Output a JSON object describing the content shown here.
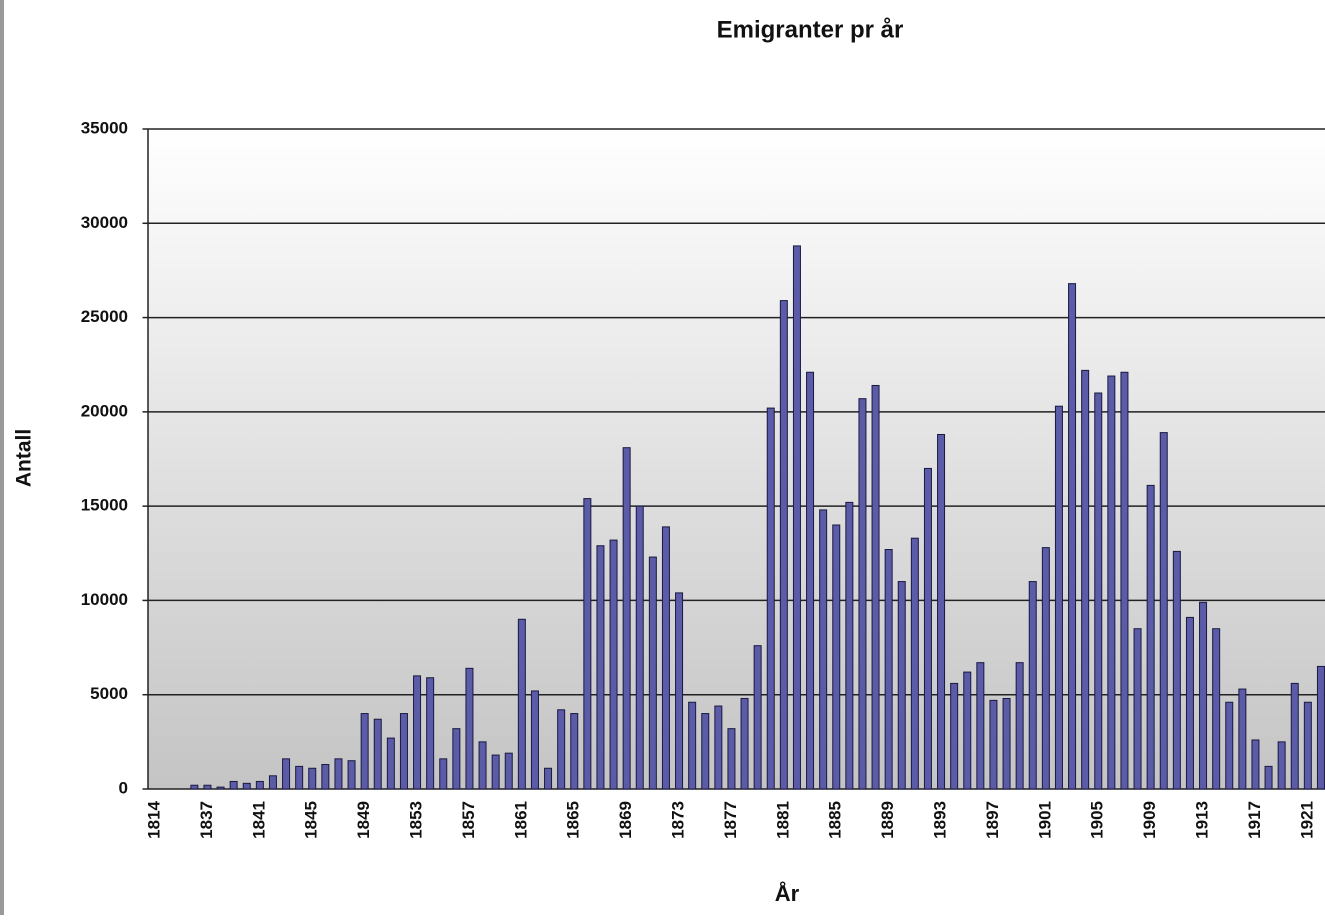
{
  "chart_data": {
    "type": "bar",
    "title": "Emigranter pr år",
    "x_label": "År",
    "y_label": "Antall",
    "categories": [
      "1814",
      null,
      null,
      null,
      "1837",
      null,
      null,
      null,
      "1841",
      null,
      null,
      null,
      "1845",
      null,
      null,
      null,
      "1849",
      null,
      null,
      null,
      "1853",
      null,
      null,
      null,
      "1857",
      null,
      null,
      null,
      "1861",
      null,
      null,
      null,
      "1865",
      null,
      null,
      null,
      "1869",
      null,
      null,
      null,
      "1873",
      null,
      null,
      null,
      "1877",
      null,
      null,
      null,
      "1881",
      null,
      null,
      null,
      "1885",
      null,
      null,
      null,
      "1889",
      null,
      null,
      null,
      "1893",
      null,
      null,
      null,
      "1897",
      null,
      null,
      null,
      "1901",
      null,
      null,
      null,
      "1905",
      null,
      null,
      null,
      "1909",
      null,
      null,
      null,
      "1913",
      null,
      null,
      null,
      "1917",
      null,
      null,
      null,
      "1921",
      null
    ],
    "values": [
      0,
      0,
      0,
      200,
      200,
      100,
      400,
      300,
      400,
      700,
      1600,
      1200,
      1100,
      1300,
      1600,
      1500,
      4000,
      3700,
      2700,
      4000,
      6000,
      5900,
      1600,
      3200,
      6400,
      2500,
      1800,
      1900,
      9000,
      5200,
      1100,
      4200,
      4000,
      15400,
      12900,
      13200,
      18100,
      15000,
      12300,
      13900,
      10400,
      4600,
      4000,
      4400,
      3200,
      4800,
      7600,
      20200,
      25900,
      28800,
      22100,
      14800,
      14000,
      15200,
      20700,
      21400,
      12700,
      11000,
      13300,
      17000,
      18800,
      5600,
      6200,
      6700,
      4700,
      4800,
      6700,
      11000,
      12800,
      20300,
      26800,
      22200,
      21000,
      21900,
      22100,
      8500,
      16100,
      18900,
      12600,
      9100,
      9900,
      8500,
      4600,
      5300,
      2600,
      1200,
      2500,
      5600,
      4600,
      6500
    ],
    "color": "#5b5ba8",
    "ylim": [
      0,
      35000
    ],
    "yticks": [
      0,
      5000,
      10000,
      15000,
      20000,
      25000,
      30000,
      35000
    ],
    "grid": true
  }
}
